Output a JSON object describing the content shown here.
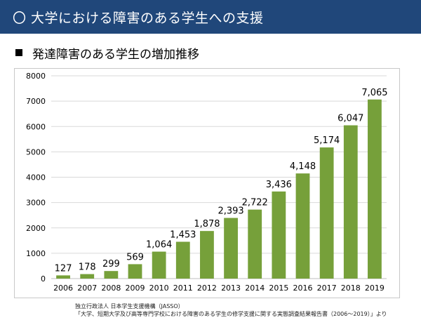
{
  "banner": {
    "title": "〇 大学における障害のある学生への支援"
  },
  "subtitle": "発達障害のある学生の増加推移",
  "source": {
    "line1": "独立行政法人 日本学生支援機構（JASSO）",
    "line2": "「大学、短期大学及び高等専門学校における障害のある学生の修学支援に関する実態調査結果報告書（2006～2019）」より"
  },
  "colors": {
    "banner": "#20477a",
    "bar": "#76a03a",
    "grid": "#d9d9d9"
  },
  "chart_data": {
    "type": "bar",
    "categories": [
      "2006",
      "2007",
      "2008",
      "2009",
      "2010",
      "2011",
      "2012",
      "2013",
      "2014",
      "2015",
      "2016",
      "2017",
      "2018",
      "2019"
    ],
    "values": [
      127,
      178,
      299,
      569,
      1064,
      1453,
      1878,
      2393,
      2722,
      3436,
      4148,
      5174,
      6047,
      7065
    ],
    "data_labels": [
      "127",
      "178",
      "299",
      "569",
      "1,064",
      "1,453",
      "1,878",
      "2,393",
      "2,722",
      "3,436",
      "4,148",
      "5,174",
      "6,047",
      "7,065"
    ],
    "yticks": [
      0,
      1000,
      2000,
      3000,
      4000,
      5000,
      6000,
      7000,
      8000
    ],
    "ylim": [
      0,
      8000
    ],
    "grid": true,
    "legend": "none"
  }
}
